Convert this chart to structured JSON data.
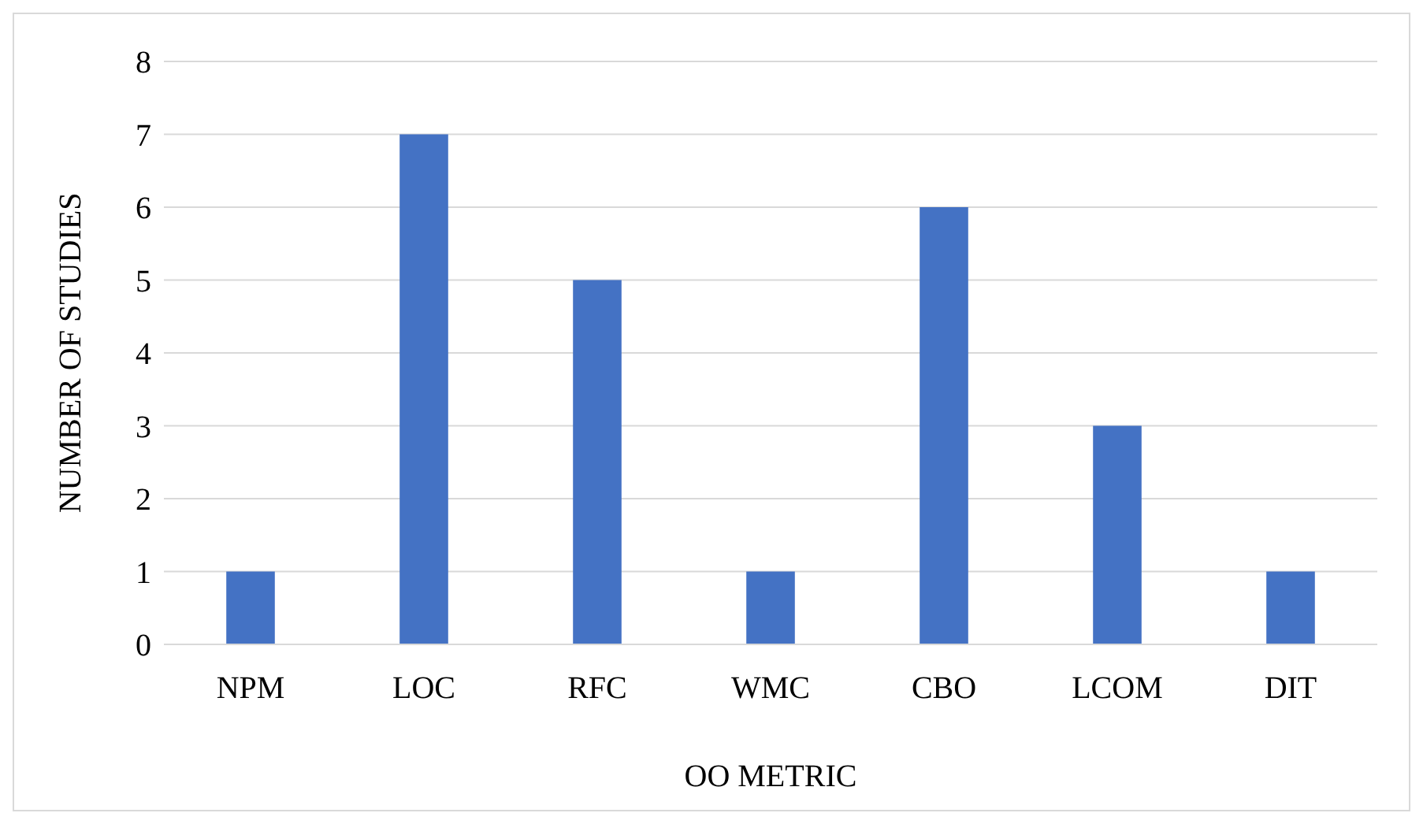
{
  "chart_data": {
    "type": "bar",
    "xlabel": "OO METRIC",
    "ylabel": "NUMBER OF STUDIES",
    "categories": [
      "NPM",
      "LOC",
      "RFC",
      "WMC",
      "CBO",
      "LCOM",
      "DIT"
    ],
    "values": [
      1,
      7,
      5,
      1,
      6,
      3,
      1
    ],
    "color": "#4472c4",
    "ylim": [
      0,
      8
    ],
    "yticks": [
      0,
      1,
      2,
      3,
      4,
      5,
      6,
      7,
      8
    ],
    "grid": "y"
  }
}
